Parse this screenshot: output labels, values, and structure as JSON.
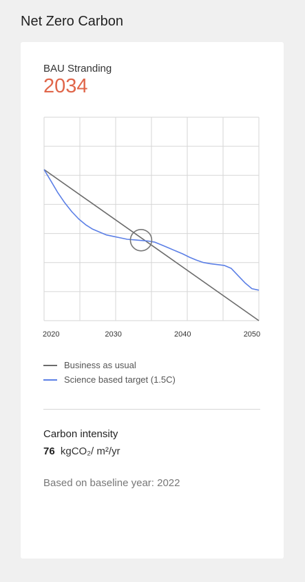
{
  "header": {
    "title": "Net Zero Carbon"
  },
  "stranding": {
    "label": "BAU Stranding",
    "value": "2034"
  },
  "colors": {
    "accent": "#e0664a",
    "bau": "#6b6b6b",
    "target": "#5b7fe6",
    "grid": "#d6d6d6",
    "marker": "#777777"
  },
  "chart_data": {
    "type": "line",
    "title": "",
    "xlabel": "",
    "ylabel": "",
    "xlim": [
      2020,
      2051
    ],
    "ylim": [
      0,
      7
    ],
    "grid": true,
    "x_ticks": [
      2020,
      2030,
      2040,
      2050
    ],
    "legend_position": "bottom",
    "series": [
      {
        "name": "Business as usual",
        "color": "#6b6b6b",
        "x": [
          2020,
          2051
        ],
        "y": [
          5.2,
          0
        ]
      },
      {
        "name": "Science based target (1.5C)",
        "color": "#5b7fe6",
        "x": [
          2020,
          2021,
          2022,
          2023,
          2024,
          2025,
          2026,
          2027,
          2028,
          2029,
          2030,
          2031,
          2032,
          2033,
          2034,
          2035,
          2036,
          2037,
          2038,
          2039,
          2040,
          2041,
          2042,
          2043,
          2044,
          2045,
          2046,
          2047,
          2048,
          2049,
          2050,
          2051
        ],
        "y": [
          5.2,
          4.8,
          4.4,
          4.05,
          3.75,
          3.5,
          3.3,
          3.15,
          3.05,
          2.95,
          2.9,
          2.85,
          2.8,
          2.78,
          2.76,
          2.74,
          2.7,
          2.6,
          2.5,
          2.4,
          2.3,
          2.18,
          2.08,
          2.0,
          1.96,
          1.93,
          1.9,
          1.8,
          1.55,
          1.3,
          1.1,
          1.05
        ]
      }
    ],
    "annotations": [
      {
        "type": "circle",
        "x": 2034,
        "y": 2.77
      }
    ]
  },
  "carbon_intensity": {
    "title": "Carbon intensity",
    "value": "76",
    "unit": "kgCO₂/ m²/yr"
  },
  "baseline": {
    "text": "Based on baseline year: 2022"
  }
}
